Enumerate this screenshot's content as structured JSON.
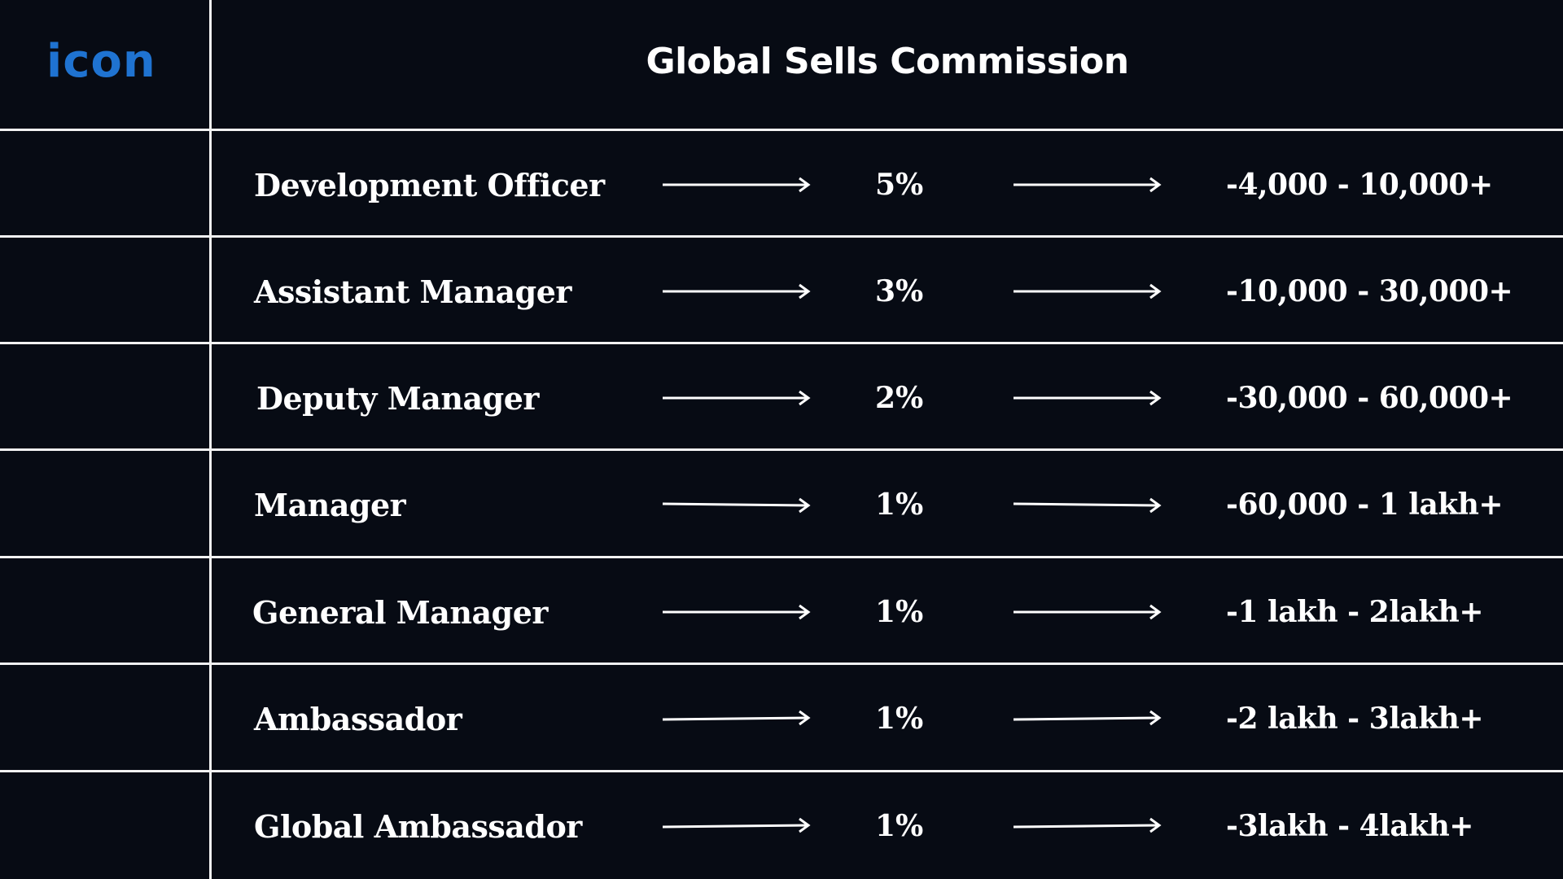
{
  "logo": {
    "text": "icon",
    "color": "#1f73d1"
  },
  "header": {
    "title": "Global Sells Commission"
  },
  "rows": [
    {
      "role": "Development Officer",
      "percent": "5%",
      "range": "-4,000 - 10,000+"
    },
    {
      "role": "Assistant Manager",
      "percent": "3%",
      "range": "-10,000 - 30,000+"
    },
    {
      "role": "Deputy Manager",
      "percent": "2%",
      "range": "-30,000 - 60,000+"
    },
    {
      "role": "Manager",
      "percent": "1%",
      "range": "-60,000 - 1 lakh+"
    },
    {
      "role": "General Manager",
      "percent": "1%",
      "range": "-1 lakh - 2lakh+"
    },
    {
      "role": "Ambassador",
      "percent": "1%",
      "range": "-2 lakh - 3lakh+"
    },
    {
      "role": "Global Ambassador",
      "percent": "1%",
      "range": "-3lakh - 4lakh+"
    }
  ],
  "icons": {
    "arrow": "right-arrow-icon"
  },
  "colors": {
    "background": "#070b14",
    "lines": "#f2f2f2",
    "text": "#ffffff"
  }
}
